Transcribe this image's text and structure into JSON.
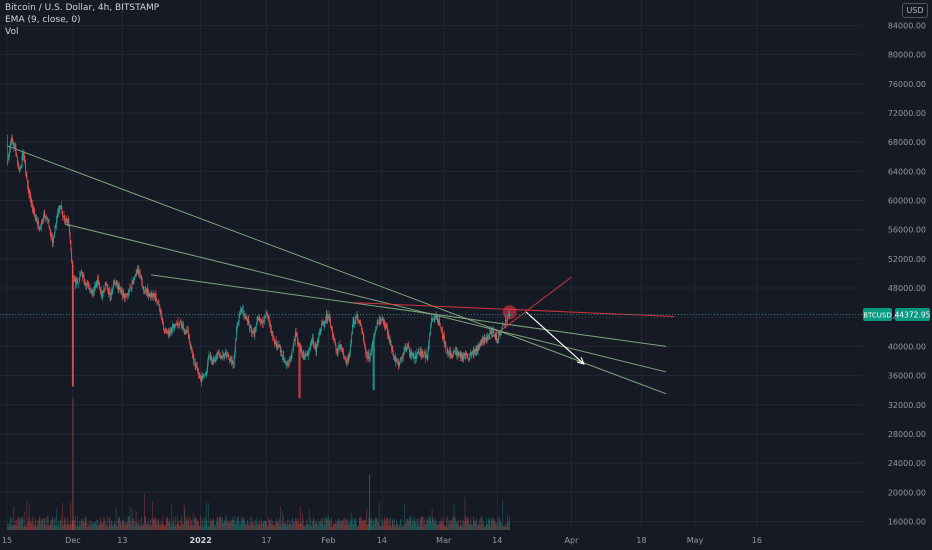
{
  "chart_data": {
    "type": "candlestick",
    "title": "Bitcoin / U.S. Dollar, 4h, BITSTAMP",
    "indicators": [
      "EMA (9, close, 0)",
      "Vol"
    ],
    "currency": "USD",
    "y_ticks": [
      16000,
      20000,
      24000,
      28000,
      32000,
      36000,
      40000,
      44000,
      48000,
      52000,
      56000,
      60000,
      64000,
      68000,
      72000,
      76000,
      80000,
      84000
    ],
    "x_ticks": [
      {
        "label": "15",
        "day": 0
      },
      {
        "label": "Dec",
        "day": 16
      },
      {
        "label": "13",
        "day": 28
      },
      {
        "label": "2022",
        "day": 47
      },
      {
        "label": "17",
        "day": 63
      },
      {
        "label": "Feb",
        "day": 78
      },
      {
        "label": "14",
        "day": 91
      },
      {
        "label": "Mar",
        "day": 106
      },
      {
        "label": "14",
        "day": 119
      },
      {
        "label": "Apr",
        "day": 137
      },
      {
        "label": "18",
        "day": 154
      },
      {
        "label": "May",
        "day": 167
      },
      {
        "label": "16",
        "day": 182
      }
    ],
    "current_price": {
      "symbol": "BTCUSD",
      "value": "44372.95",
      "numeric": 44372.95
    },
    "price_path": [
      [
        0,
        65000
      ],
      [
        1,
        68500
      ],
      [
        2,
        67000
      ],
      [
        3,
        64000
      ],
      [
        4,
        66500
      ],
      [
        5,
        62000
      ],
      [
        6,
        59500
      ],
      [
        7,
        57500
      ],
      [
        8,
        56000
      ],
      [
        9,
        58500
      ],
      [
        10,
        57000
      ],
      [
        11,
        54000
      ],
      [
        12,
        57500
      ],
      [
        13,
        59000
      ],
      [
        14,
        57500
      ],
      [
        15,
        57000
      ],
      [
        16,
        49500
      ],
      [
        17,
        48500
      ],
      [
        18,
        50000
      ],
      [
        19,
        49000
      ],
      [
        20,
        48000
      ],
      [
        21,
        47500
      ],
      [
        22,
        49500
      ],
      [
        23,
        47000
      ],
      [
        24,
        48500
      ],
      [
        25,
        47000
      ],
      [
        26,
        49000
      ],
      [
        27,
        48000
      ],
      [
        28,
        47000
      ],
      [
        29,
        46500
      ],
      [
        30,
        48000
      ],
      [
        31,
        49500
      ],
      [
        32,
        50500
      ],
      [
        33,
        48000
      ],
      [
        34,
        47500
      ],
      [
        35,
        47000
      ],
      [
        36,
        46800
      ],
      [
        37,
        45500
      ],
      [
        38,
        42500
      ],
      [
        39,
        41800
      ],
      [
        40,
        42500
      ],
      [
        41,
        43200
      ],
      [
        42,
        43000
      ],
      [
        43,
        42200
      ],
      [
        44,
        41800
      ],
      [
        45,
        38500
      ],
      [
        46,
        37000
      ],
      [
        47,
        35500
      ],
      [
        48,
        36000
      ],
      [
        49,
        38500
      ],
      [
        50,
        38000
      ],
      [
        51,
        38800
      ],
      [
        52,
        38700
      ],
      [
        53,
        39000
      ],
      [
        54,
        38500
      ],
      [
        55,
        37800
      ],
      [
        56,
        43500
      ],
      [
        57,
        45000
      ],
      [
        58,
        44000
      ],
      [
        59,
        42500
      ],
      [
        60,
        42000
      ],
      [
        61,
        44000
      ],
      [
        62,
        43500
      ],
      [
        63,
        44500
      ],
      [
        64,
        42500
      ],
      [
        65,
        40500
      ],
      [
        66,
        40000
      ],
      [
        67,
        38500
      ],
      [
        68,
        37500
      ],
      [
        69,
        38800
      ],
      [
        70,
        41500
      ],
      [
        71,
        40000
      ],
      [
        72,
        38500
      ],
      [
        73,
        39200
      ],
      [
        74,
        41000
      ],
      [
        75,
        39500
      ],
      [
        76,
        42500
      ],
      [
        77,
        43500
      ],
      [
        78,
        44500
      ],
      [
        79,
        42000
      ],
      [
        80,
        39000
      ],
      [
        81,
        40500
      ],
      [
        82,
        37800
      ],
      [
        83,
        38500
      ],
      [
        84,
        43500
      ],
      [
        85,
        44000
      ],
      [
        86,
        42500
      ],
      [
        87,
        39000
      ],
      [
        88,
        38500
      ],
      [
        89,
        41500
      ],
      [
        90,
        43500
      ],
      [
        91,
        44000
      ],
      [
        92,
        42500
      ],
      [
        93,
        40500
      ],
      [
        94,
        38500
      ],
      [
        95,
        37500
      ],
      [
        96,
        38500
      ],
      [
        97,
        40000
      ],
      [
        98,
        39000
      ],
      [
        99,
        38500
      ],
      [
        100,
        39200
      ],
      [
        101,
        39000
      ],
      [
        102,
        38700
      ],
      [
        103,
        43500
      ],
      [
        104,
        44500
      ],
      [
        105,
        43000
      ],
      [
        106,
        41000
      ],
      [
        107,
        39000
      ],
      [
        108,
        38800
      ],
      [
        109,
        39200
      ],
      [
        110,
        38500
      ],
      [
        111,
        39000
      ],
      [
        112,
        38500
      ],
      [
        113,
        39000
      ],
      [
        114,
        39500
      ],
      [
        115,
        40500
      ],
      [
        116,
        41000
      ],
      [
        117,
        41500
      ],
      [
        118,
        42000
      ],
      [
        119,
        41000
      ],
      [
        120,
        42500
      ],
      [
        121,
        43500
      ],
      [
        122,
        44372.95
      ]
    ],
    "wick_extremes": [
      [
        16,
        34500
      ],
      [
        71,
        32900
      ],
      [
        89,
        34000
      ],
      [
        0,
        69000
      ]
    ],
    "annotations": [
      {
        "kind": "trendline",
        "color": "#8fbc8f",
        "from": [
          0,
          67500
        ],
        "to": [
          160,
          33500
        ]
      },
      {
        "kind": "trendline",
        "color": "#8fbc8f",
        "from": [
          14,
          56800
        ],
        "to": [
          160,
          36500
        ]
      },
      {
        "kind": "trendline",
        "color": "#8fbc8f",
        "from": [
          35,
          49800
        ],
        "to": [
          160,
          40000
        ]
      },
      {
        "kind": "trendline",
        "color": "#f23645",
        "from": [
          84,
          46000
        ],
        "to": [
          162,
          44100
        ]
      },
      {
        "kind": "trendline",
        "color": "#f23645",
        "from": [
          110,
          38000
        ],
        "to": [
          137,
          49500
        ]
      },
      {
        "kind": "circle",
        "color": "#f23645",
        "at": [
          122,
          44700
        ]
      },
      {
        "kind": "arrow",
        "color": "#ffffff",
        "from": [
          126,
          44700
        ],
        "to": [
          140,
          37600
        ]
      }
    ]
  }
}
